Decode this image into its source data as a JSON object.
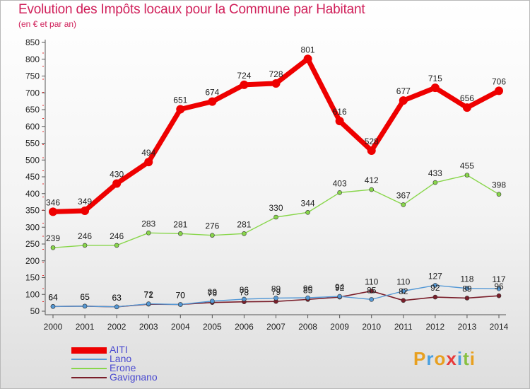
{
  "header": {
    "title": "Evolution des Impôts locaux pour la Commune par Habitant",
    "subtitle": "(en € et par an)"
  },
  "chart_data": {
    "type": "line",
    "title": "Evolution des Impôts locaux pour la Commune par Habitant",
    "subtitle": "(en € et par an)",
    "x": [
      "2000",
      "2001",
      "2002",
      "2003",
      "2004",
      "2005",
      "2006",
      "2007",
      "2008",
      "2009",
      "2010",
      "2011",
      "2012",
      "2013",
      "2014"
    ],
    "yticks": [
      50,
      100,
      150,
      200,
      250,
      300,
      350,
      400,
      450,
      500,
      550,
      600,
      650,
      700,
      750,
      800,
      850
    ],
    "ylim": [
      50,
      850
    ],
    "grid": false,
    "legend_position": "bottom-left",
    "series": [
      {
        "name": "AITI",
        "color": "#ee0000",
        "values": [
          346,
          349,
          430,
          494,
          651,
          674,
          724,
          728,
          801,
          616,
          528,
          677,
          715,
          656,
          706
        ]
      },
      {
        "name": "Lano",
        "color": "#5599d6",
        "values": [
          64,
          65,
          63,
          72,
          70,
          80,
          86,
          89,
          90,
          94,
          85,
          110,
          127,
          118,
          117
        ]
      },
      {
        "name": "Erone",
        "color": "#88d64a",
        "values": [
          239,
          246,
          246,
          283,
          281,
          276,
          281,
          330,
          344,
          403,
          412,
          367,
          433,
          455,
          398
        ]
      },
      {
        "name": "Gavignano",
        "color": "#7a1e2a",
        "values": [
          64,
          65,
          63,
          71,
          70,
          76,
          78,
          79,
          85,
          92,
          110,
          82,
          92,
          89,
          96
        ]
      }
    ],
    "data_labels": {
      "AITI": [
        "346",
        "349",
        "430",
        "494",
        "651",
        "674",
        "724",
        "728",
        "801",
        "616",
        "528",
        "677",
        "715",
        "656",
        "706"
      ],
      "Lano": [
        "64",
        "65",
        "63",
        "72",
        "70",
        "80",
        "86",
        "89",
        "90",
        "94",
        "85",
        "110",
        "127",
        "118",
        "117"
      ],
      "Erone": [
        "239",
        "246",
        "246",
        "283",
        "281",
        "276",
        "281",
        "330",
        "344",
        "403",
        "412",
        "367",
        "433",
        "455",
        "398"
      ],
      "Gavignano": [
        "64",
        "65",
        "63",
        "71",
        "70",
        "76",
        "78",
        "79",
        "85",
        "92",
        "110",
        "82",
        "92",
        "89",
        "96"
      ]
    }
  },
  "logo": {
    "letters": [
      "P",
      "r",
      "o",
      "x",
      "i",
      "t",
      "i"
    ],
    "colors": [
      "#e8a020",
      "#4aa0e0",
      "#e8a020",
      "#e83a3a",
      "#4aa0e0",
      "#88c040",
      "#e8a020"
    ]
  }
}
